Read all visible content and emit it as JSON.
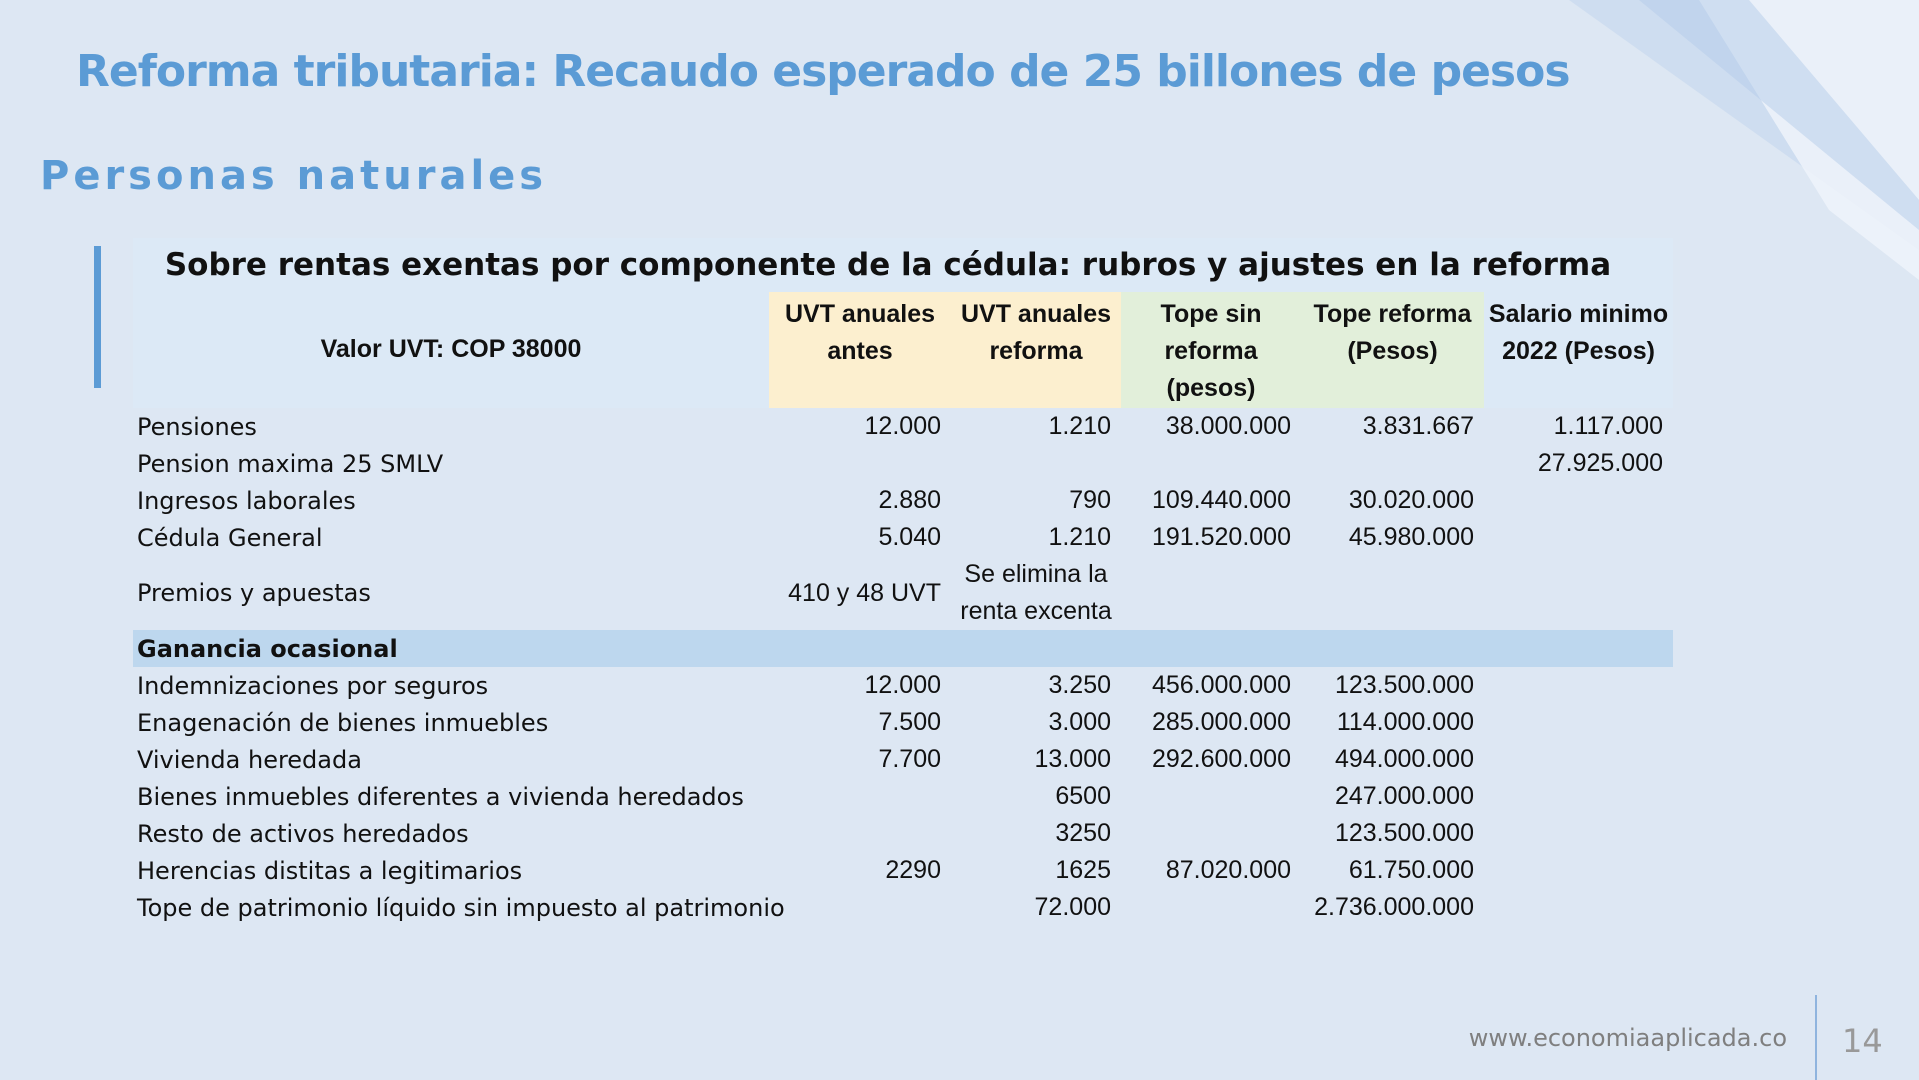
{
  "slide": {
    "title": "Reforma tributaria: Recaudo esperado de 25 billones de pesos",
    "subtitle": "Personas naturales"
  },
  "table": {
    "title": "Sobre rentas exentas por componente de la cédula: rubros y ajustes en la reforma",
    "uvt_value_label": "Valor UVT: COP 38000",
    "headers": [
      "UVT anuales antes",
      "UVT anuales reforma",
      "Tope sin reforma (pesos)",
      "Tope reforma (Pesos)",
      "Salario minimo 2022 (Pesos)"
    ],
    "rows": [
      {
        "label": "Pensiones",
        "uvt_antes": "12.000",
        "uvt_reforma": "1.210",
        "tope_sin": "38.000.000",
        "tope_reforma": "3.831.667",
        "salario": "1.117.000"
      },
      {
        "label": "Pension maxima 25 SMLV",
        "uvt_antes": "",
        "uvt_reforma": "",
        "tope_sin": "",
        "tope_reforma": "",
        "salario": "27.925.000"
      },
      {
        "label": "Ingresos laborales",
        "uvt_antes": "2.880",
        "uvt_reforma": "790",
        "tope_sin": "109.440.000",
        "tope_reforma": "30.020.000",
        "salario": ""
      },
      {
        "label": "Cédula General",
        "uvt_antes": "5.040",
        "uvt_reforma": "1.210",
        "tope_sin": "191.520.000",
        "tope_reforma": "45.980.000",
        "salario": ""
      },
      {
        "label": "Premios y apuestas",
        "uvt_antes": "410 y 48 UVT",
        "uvt_reforma": "Se elimina la renta excenta",
        "tope_sin": "",
        "tope_reforma": "",
        "salario": ""
      }
    ],
    "section_label": "Ganancia ocasional",
    "section_rows": [
      {
        "label": "Indemnizaciones por seguros",
        "uvt_antes": "12.000",
        "uvt_reforma": "3.250",
        "tope_sin": "456.000.000",
        "tope_reforma": "123.500.000",
        "salario": ""
      },
      {
        "label": "Enagenación de bienes inmuebles",
        "uvt_antes": "7.500",
        "uvt_reforma": "3.000",
        "tope_sin": "285.000.000",
        "tope_reforma": "114.000.000",
        "salario": ""
      },
      {
        "label": "Vivienda heredada",
        "uvt_antes": "7.700",
        "uvt_reforma": "13.000",
        "tope_sin": "292.600.000",
        "tope_reforma": "494.000.000",
        "salario": ""
      },
      {
        "label": "Bienes inmuebles diferentes a vivienda heredados",
        "uvt_antes": "",
        "uvt_reforma": "6500",
        "tope_sin": "",
        "tope_reforma": "247.000.000",
        "salario": ""
      },
      {
        "label": "Resto de activos heredados",
        "uvt_antes": "",
        "uvt_reforma": "3250",
        "tope_sin": "",
        "tope_reforma": "123.500.000",
        "salario": ""
      },
      {
        "label": "Herencias distitas a legitimarios",
        "uvt_antes": "2290",
        "uvt_reforma": "1625",
        "tope_sin": "87.020.000",
        "tope_reforma": "61.750.000",
        "salario": ""
      },
      {
        "label": "Tope de patrimonio líquido sin impuesto al patrimonio",
        "uvt_antes": "",
        "uvt_reforma": "72.000",
        "tope_sin": "",
        "tope_reforma": "2.736.000.000",
        "salario": ""
      }
    ]
  },
  "footer": {
    "url": "www.economiaaplicada.co",
    "page_number": "14"
  },
  "colors": {
    "accent": "#5b9bd5",
    "background": "#dde7f3",
    "header_yellow": "#fcefcf",
    "header_green": "#e2efda",
    "section_band": "#bdd7ee"
  }
}
